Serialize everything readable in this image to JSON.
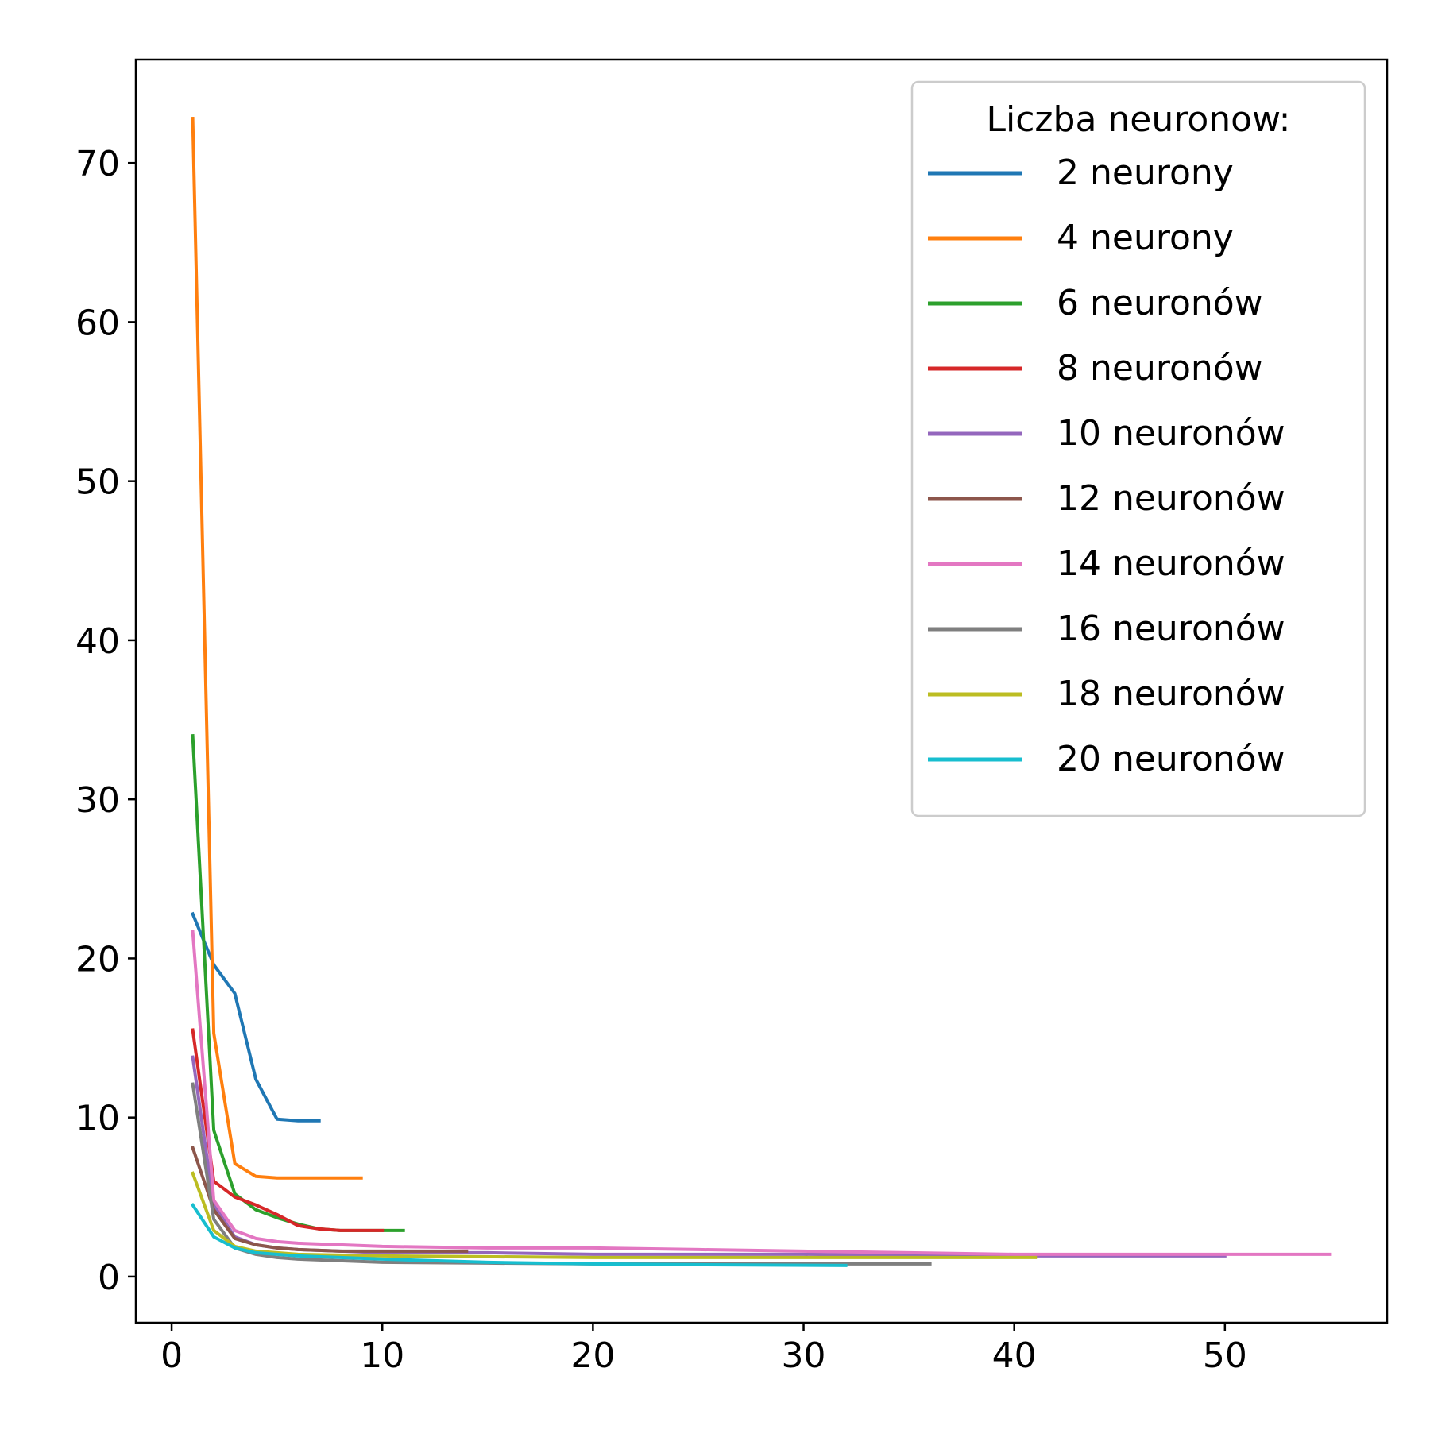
{
  "chart_data": {
    "type": "line",
    "title": "",
    "xlabel": "",
    "ylabel": "",
    "xlim": [
      -1.7,
      57.7
    ],
    "ylim": [
      -2.9,
      76.5
    ],
    "xticks": [
      0,
      10,
      20,
      30,
      40,
      50
    ],
    "yticks": [
      0,
      10,
      20,
      30,
      40,
      50,
      60,
      70
    ],
    "grid": false,
    "legend": {
      "title": "Liczba neuronow:",
      "placement": "top-right"
    },
    "series": [
      {
        "name": "2 neurony",
        "color": "#1f77b4",
        "x": [
          1,
          2,
          3,
          4,
          5,
          6,
          7
        ],
        "y": [
          22.8,
          19.6,
          17.8,
          12.4,
          9.9,
          9.8,
          9.8
        ]
      },
      {
        "name": "4 neurony",
        "color": "#ff7f0e",
        "x": [
          1,
          2,
          3,
          4,
          5,
          6,
          7,
          8,
          9
        ],
        "y": [
          72.8,
          15.3,
          7.1,
          6.3,
          6.2,
          6.2,
          6.2,
          6.2,
          6.2
        ]
      },
      {
        "name": "6 neuronów",
        "color": "#2ca02c",
        "x": [
          1,
          2,
          3,
          4,
          5,
          6,
          7,
          8,
          9,
          10,
          11
        ],
        "y": [
          34.0,
          9.2,
          5.2,
          4.2,
          3.7,
          3.3,
          3.0,
          2.9,
          2.9,
          2.9,
          2.9
        ]
      },
      {
        "name": "8 neuronów",
        "color": "#d62728",
        "x": [
          1,
          2,
          3,
          4,
          5,
          6,
          7,
          8,
          9,
          10
        ],
        "y": [
          15.5,
          6.0,
          5.0,
          4.5,
          3.9,
          3.2,
          3.0,
          2.9,
          2.9,
          2.9
        ]
      },
      {
        "name": "10 neuronów",
        "color": "#9467bd",
        "x": [
          1,
          2,
          3,
          4,
          5,
          6,
          8,
          10,
          15,
          20,
          25,
          30,
          40,
          50
        ],
        "y": [
          13.8,
          4.5,
          2.5,
          2.0,
          1.8,
          1.7,
          1.6,
          1.5,
          1.5,
          1.4,
          1.4,
          1.4,
          1.3,
          1.3
        ]
      },
      {
        "name": "12 neuronów",
        "color": "#8c564b",
        "x": [
          1,
          2,
          3,
          4,
          5,
          6,
          8,
          10,
          14
        ],
        "y": [
          8.1,
          4.2,
          2.4,
          2.0,
          1.8,
          1.7,
          1.6,
          1.6,
          1.6
        ]
      },
      {
        "name": "14 neuronów",
        "color": "#e377c2",
        "x": [
          1,
          2,
          3,
          4,
          5,
          6,
          8,
          10,
          15,
          20,
          25,
          30,
          35,
          40,
          45,
          50,
          55
        ],
        "y": [
          21.7,
          4.8,
          2.9,
          2.4,
          2.2,
          2.1,
          2.0,
          1.9,
          1.8,
          1.8,
          1.7,
          1.6,
          1.5,
          1.4,
          1.4,
          1.4,
          1.4
        ]
      },
      {
        "name": "16 neuronów",
        "color": "#7f7f7f",
        "x": [
          1,
          2,
          3,
          4,
          5,
          6,
          8,
          10,
          15,
          20,
          25,
          30,
          36
        ],
        "y": [
          12.1,
          3.6,
          1.8,
          1.4,
          1.2,
          1.1,
          1.0,
          0.9,
          0.85,
          0.8,
          0.8,
          0.8,
          0.8
        ]
      },
      {
        "name": "18 neuronów",
        "color": "#bcbd22",
        "x": [
          1,
          2,
          3,
          4,
          5,
          6,
          8,
          10,
          15,
          20,
          25,
          30,
          35,
          41
        ],
        "y": [
          6.5,
          2.9,
          1.9,
          1.6,
          1.5,
          1.4,
          1.35,
          1.3,
          1.25,
          1.2,
          1.2,
          1.2,
          1.2,
          1.2
        ]
      },
      {
        "name": "20 neuronów",
        "color": "#17becf",
        "x": [
          1,
          2,
          3,
          4,
          5,
          6,
          8,
          10,
          15,
          20,
          25,
          32
        ],
        "y": [
          4.5,
          2.5,
          1.8,
          1.5,
          1.4,
          1.3,
          1.2,
          1.1,
          0.9,
          0.8,
          0.75,
          0.7
        ]
      }
    ]
  }
}
